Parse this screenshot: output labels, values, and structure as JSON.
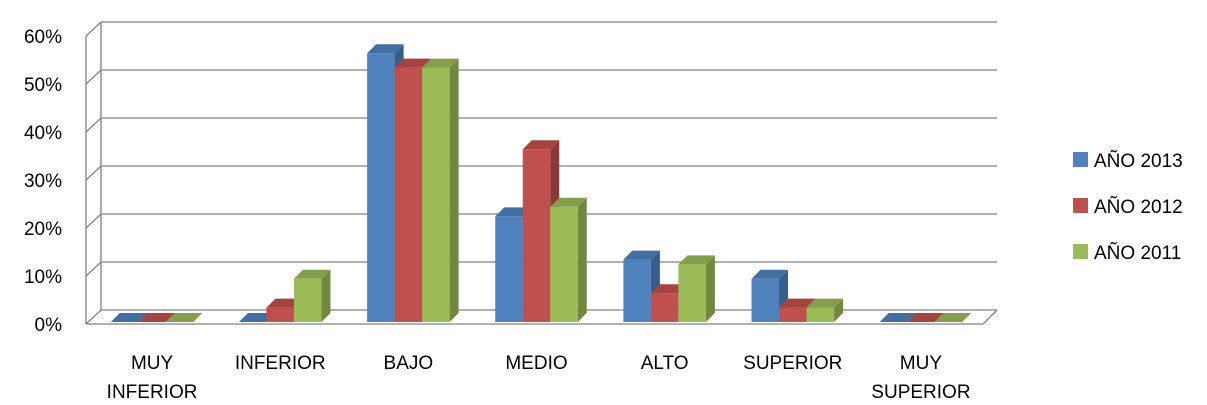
{
  "chart_data": {
    "type": "bar",
    "title": "",
    "xlabel": "",
    "ylabel": "",
    "ylim": [
      0,
      60
    ],
    "ytick_labels": [
      "0%",
      "10%",
      "20%",
      "30%",
      "40%",
      "50%",
      "60%"
    ],
    "categories": [
      [
        "MUY",
        "INFERIOR"
      ],
      [
        "INFERIOR"
      ],
      [
        "BAJO"
      ],
      [
        "MEDIO"
      ],
      [
        "ALTO"
      ],
      [
        "SUPERIOR"
      ],
      [
        "MUY",
        "SUPERIOR"
      ]
    ],
    "series": [
      {
        "name": "AÑO 2013",
        "color": "#4F81BD",
        "side_color": "#385D8A",
        "values": [
          0,
          0,
          56,
          22,
          13,
          9,
          0
        ]
      },
      {
        "name": "AÑO 2012",
        "color": "#C0504D",
        "side_color": "#8C3836",
        "values": [
          0,
          3,
          53,
          36,
          6,
          3,
          0
        ]
      },
      {
        "name": "AÑO 2011",
        "color": "#9BBB59",
        "side_color": "#71893F",
        "values": [
          0,
          9,
          53,
          24,
          12,
          3,
          0
        ]
      }
    ],
    "grid": true,
    "legend_position": "right"
  }
}
